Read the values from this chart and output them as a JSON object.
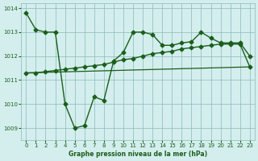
{
  "line1_x": [
    0,
    1,
    2,
    3,
    4,
    5,
    6,
    7,
    8,
    9,
    10,
    11,
    12,
    13,
    14,
    15,
    16,
    17,
    18,
    19,
    20,
    21,
    22,
    23
  ],
  "line1_y": [
    1013.8,
    1013.1,
    1013.0,
    1013.0,
    1010.0,
    1009.0,
    1009.1,
    1010.3,
    1010.15,
    1011.8,
    1012.15,
    1013.0,
    1013.0,
    1012.9,
    1012.45,
    1012.45,
    1012.55,
    1012.6,
    1013.0,
    1012.75,
    1012.55,
    1012.55,
    1012.55,
    1012.0
  ],
  "line2_x": [
    0,
    1,
    2,
    3,
    4,
    5,
    6,
    7,
    8,
    9,
    10,
    11,
    12,
    13,
    14,
    15,
    16,
    17,
    18,
    19,
    20,
    21,
    22,
    23
  ],
  "line2_y": [
    1011.3,
    1011.3,
    1011.35,
    1011.4,
    1011.45,
    1011.5,
    1011.55,
    1011.6,
    1011.65,
    1011.75,
    1011.85,
    1011.9,
    1012.0,
    1012.1,
    1012.15,
    1012.2,
    1012.3,
    1012.35,
    1012.4,
    1012.45,
    1012.5,
    1012.5,
    1012.5,
    1011.55
  ],
  "line3_x": [
    0,
    23
  ],
  "line3_y": [
    1011.3,
    1011.55
  ],
  "ylim": [
    1008.5,
    1014.2
  ],
  "xlim": [
    -0.5,
    23.5
  ],
  "yticks": [
    1009,
    1010,
    1011,
    1012,
    1013,
    1014
  ],
  "xticks": [
    0,
    1,
    2,
    3,
    4,
    5,
    6,
    7,
    8,
    9,
    10,
    11,
    12,
    13,
    14,
    15,
    16,
    17,
    18,
    19,
    20,
    21,
    22,
    23
  ],
  "xlabel": "Graphe pression niveau de la mer (hPa)",
  "line_color": "#1a5e1a",
  "bg_color": "#d4eeee",
  "grid_color": "#8ab8b8",
  "tick_label_color": "#1a5e1a",
  "xlabel_color": "#1a5e1a"
}
